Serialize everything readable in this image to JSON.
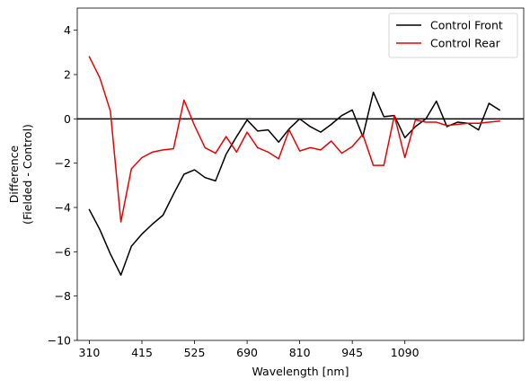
{
  "chart_data": {
    "type": "line",
    "title": "",
    "xlabel": "Wavelength [nm]",
    "ylabel": [
      "Difference",
      "(Fielded - Control)"
    ],
    "xlim": [
      285,
      1160
    ],
    "ylim": [
      -10,
      5
    ],
    "xticks": [
      310,
      415,
      525,
      690,
      810,
      945,
      1090
    ],
    "xtick_labels": [
      "310",
      "415",
      "525",
      "690",
      "810",
      "945",
      "1090"
    ],
    "xtick_positions": [
      0,
      5,
      10,
      15,
      20,
      25,
      30
    ],
    "yticks": [
      -10,
      -8,
      -6,
      -4,
      -2,
      0,
      2,
      4
    ],
    "grid": false,
    "legend_position": "top-right",
    "reference_line": {
      "y": 0,
      "color": "#000000"
    },
    "x_index_range": [
      -1.15,
      41.3
    ],
    "series": [
      {
        "name": "Control Front",
        "color": "#000000",
        "x_index": [
          0,
          1,
          2,
          3,
          4,
          5,
          6,
          7,
          8,
          9,
          10,
          11,
          12,
          13,
          14,
          15,
          16,
          17,
          18,
          19,
          20,
          21,
          22,
          23,
          24,
          25,
          26,
          27,
          28,
          29,
          30,
          31,
          32,
          33,
          34,
          35,
          36,
          37,
          38,
          39,
          40
        ],
        "values": [
          -4.1,
          -5.0,
          -6.1,
          -7.05,
          -5.75,
          -5.2,
          -4.75,
          -4.35,
          -3.4,
          -2.5,
          -2.3,
          -2.65,
          -2.8,
          -1.6,
          -0.8,
          -0.05,
          -0.55,
          -0.5,
          -1.05,
          -0.45,
          0.0,
          -0.35,
          -0.6,
          -0.25,
          0.15,
          0.4,
          -0.8,
          1.2,
          0.1,
          0.15,
          -0.85,
          -0.35,
          0.0,
          0.8,
          -0.35,
          -0.15,
          -0.2,
          -0.5,
          0.7,
          0.4,
          null
        ]
      },
      {
        "name": "Control Rear",
        "color": "#ee0000",
        "x_index": [
          0,
          1,
          2,
          3,
          4,
          5,
          6,
          7,
          8,
          9,
          10,
          11,
          12,
          13,
          14,
          15,
          16,
          17,
          18,
          19,
          20,
          21,
          22,
          23,
          24,
          25,
          26,
          27,
          28,
          29,
          30,
          31,
          32,
          33,
          34,
          35,
          36,
          37,
          38,
          39,
          40
        ],
        "values": [
          2.8,
          1.85,
          0.35,
          -4.65,
          -2.25,
          -1.75,
          -1.5,
          -1.4,
          -1.35,
          0.85,
          -0.3,
          -1.3,
          -1.55,
          -0.8,
          -1.5,
          -0.6,
          -1.3,
          -1.5,
          -1.8,
          -0.5,
          -1.45,
          -1.3,
          -1.4,
          -1.0,
          -1.55,
          -1.25,
          -0.7,
          -2.1,
          -2.1,
          0.15,
          -1.75,
          -0.05,
          -0.15,
          -0.15,
          -0.3,
          -0.25,
          -0.2,
          -0.2,
          -0.15,
          -0.1,
          null
        ]
      }
    ]
  }
}
